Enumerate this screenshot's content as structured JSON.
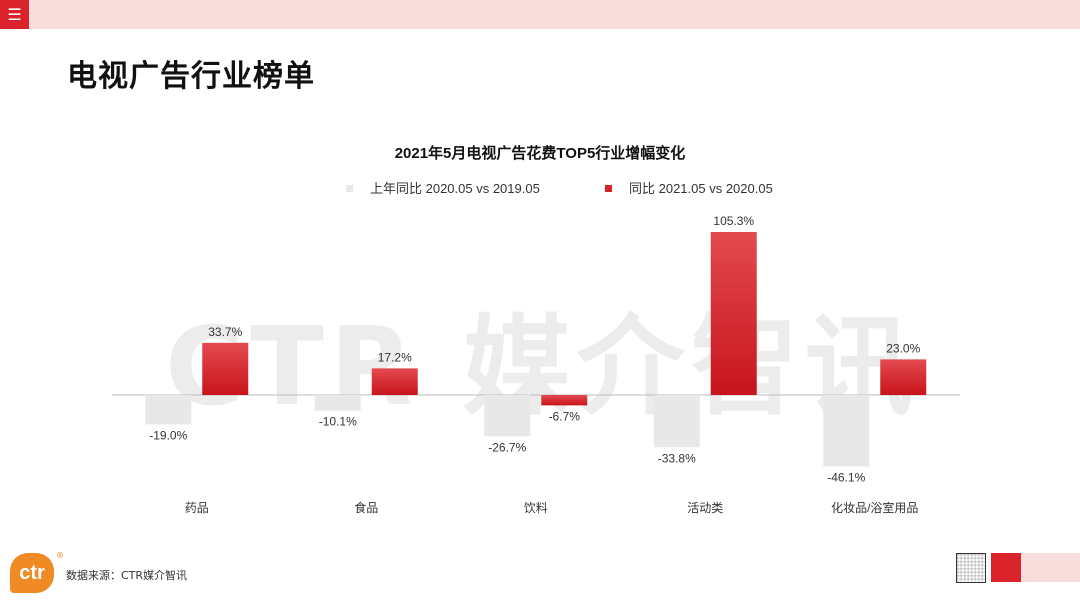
{
  "header": {
    "menu_icon": "hamburger-menu-icon"
  },
  "page_title": "电视广告行业榜单",
  "watermark": "CTR 媒介智讯",
  "chart_data": {
    "type": "bar",
    "title": "2021年5月电视广告花费TOP5行业增幅变化",
    "categories": [
      "药品",
      "食品",
      "饮料",
      "活动类",
      "化妆品/浴室用品"
    ],
    "series": [
      {
        "name": "上年同比 2020.05 vs 2019.05",
        "color": "#e8e8e8",
        "values": [
          -19.0,
          -10.1,
          -26.7,
          -33.8,
          -46.1
        ],
        "labels": [
          "-19.0%",
          "-10.1%",
          "-26.7%",
          "-33.8%",
          "-46.1%"
        ]
      },
      {
        "name": "同比 2021.05 vs 2020.05",
        "color": "#d9222a",
        "values": [
          33.7,
          17.2,
          -6.7,
          105.3,
          23.0
        ],
        "labels": [
          "33.7%",
          "17.2%",
          "-6.7%",
          "105.3%",
          "23.0%"
        ]
      }
    ],
    "legend_position": "top-center",
    "grid": false
  },
  "footer": {
    "source": "数据来源：CTR媒介智讯",
    "logo_text": "ctr",
    "logo_mark": "®"
  }
}
